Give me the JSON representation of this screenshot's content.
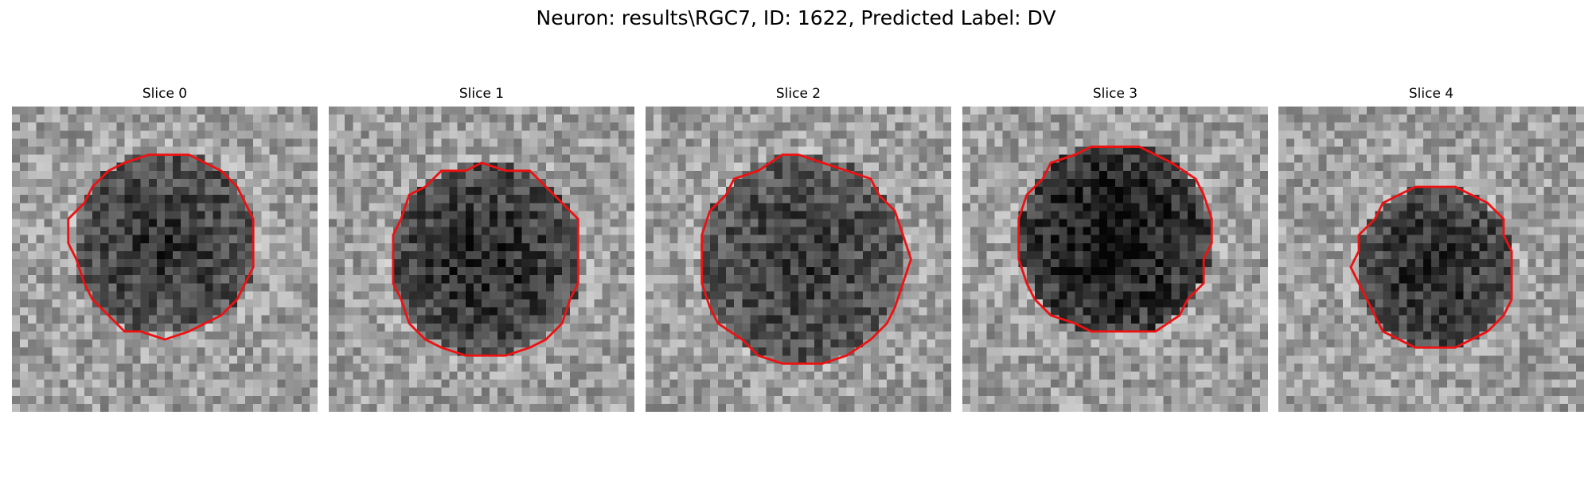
{
  "figure": {
    "title": "Neuron: results\\RGC7, ID: 1622, Predicted Label: DV",
    "contour_color": "#ee1111",
    "colormap": "gray",
    "panels": [
      {
        "title": "Slice 0",
        "seed": 11,
        "center": [
          19,
          17
        ],
        "radius": 11.5,
        "darkness": 0.45
      },
      {
        "title": "Slice 1",
        "seed": 23,
        "center": [
          19.5,
          19
        ],
        "radius": 12,
        "darkness": 0.5
      },
      {
        "title": "Slice 2",
        "seed": 37,
        "center": [
          19.5,
          19
        ],
        "radius": 13,
        "darkness": 0.42
      },
      {
        "title": "Slice 3",
        "seed": 41,
        "center": [
          19,
          16.5
        ],
        "radius": 12,
        "darkness": 0.6
      },
      {
        "title": "Slice 4",
        "seed": 53,
        "center": [
          19.5,
          20
        ],
        "radius": 10,
        "darkness": 0.5
      }
    ]
  }
}
